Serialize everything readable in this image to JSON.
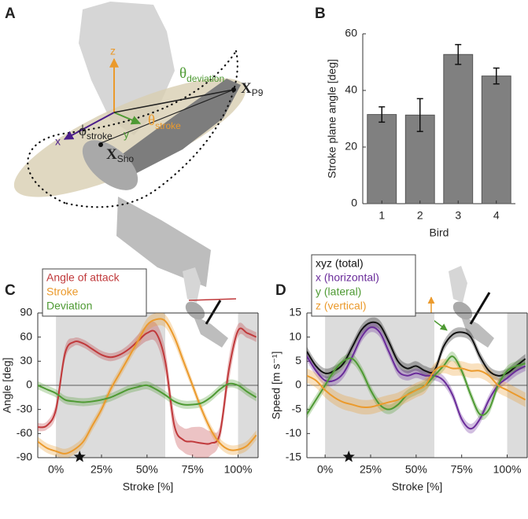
{
  "panel_a": {
    "label": "A",
    "z": "z",
    "x": "x",
    "y": "y",
    "theta_deviation": {
      "symbol": "θ",
      "subscript": "deviation"
    },
    "theta_stroke": {
      "symbol": "θ",
      "subscript": "stroke"
    },
    "phi_stroke": {
      "symbol": "ϕ",
      "subscript": "stroke"
    },
    "x_p9": {
      "symbol": "X",
      "subscript": "P9"
    },
    "x_sho": {
      "symbol": "X",
      "subscript": "Sho"
    }
  },
  "chart_data": [
    {
      "type": "bar",
      "panel": "B",
      "ylabel": "Stroke plane angle [deg]",
      "xlabel": "Bird",
      "categories": [
        "1",
        "2",
        "3",
        "4"
      ],
      "values": [
        31.5,
        31.3,
        52.7,
        45.1
      ],
      "errors": [
        2.7,
        5.8,
        3.5,
        2.8
      ],
      "color": "#808080",
      "ylim": [
        0,
        60
      ],
      "yticks": [
        0,
        20,
        40,
        60
      ],
      "box": false
    },
    {
      "type": "line",
      "panel": "C",
      "ylabel": "Angle [deg]",
      "xlabel": "Stroke [%]",
      "x": [
        -10,
        -5,
        0,
        5,
        10,
        15,
        20,
        25,
        30,
        35,
        40,
        45,
        50,
        55,
        60,
        65,
        70,
        75,
        80,
        85,
        90,
        95,
        100,
        105,
        110
      ],
      "series": [
        {
          "name": "Angle of attack",
          "color": "#c0393b",
          "values": [
            -52,
            -50,
            -30,
            40,
            54,
            52,
            45,
            38,
            35,
            38,
            45,
            55,
            65,
            65,
            30,
            -50,
            -68,
            -70,
            -72,
            -72,
            -60,
            20,
            68,
            65,
            60
          ],
          "spread": [
            5,
            5,
            8,
            8,
            5,
            5,
            5,
            5,
            5,
            5,
            6,
            8,
            10,
            12,
            15,
            15,
            15,
            18,
            20,
            15,
            10,
            15,
            8,
            6,
            6
          ]
        },
        {
          "name": "Stroke",
          "color": "#eb9a2c",
          "values": [
            -70,
            -78,
            -82,
            -85,
            -80,
            -70,
            -50,
            -30,
            -5,
            15,
            35,
            55,
            75,
            82,
            80,
            60,
            30,
            0,
            -30,
            -55,
            -72,
            -80,
            -80,
            -75,
            -62
          ],
          "spread": [
            6,
            6,
            6,
            6,
            6,
            6,
            6,
            6,
            6,
            6,
            6,
            7,
            8,
            8,
            8,
            8,
            7,
            6,
            6,
            6,
            6,
            6,
            6,
            6,
            6
          ]
        },
        {
          "name": "Deviation",
          "color": "#4e9a33",
          "values": [
            0,
            -5,
            -10,
            -18,
            -20,
            -21,
            -20,
            -18,
            -15,
            -10,
            -5,
            -2,
            0,
            -5,
            -12,
            -20,
            -24,
            -24,
            -22,
            -15,
            -5,
            2,
            0,
            -8,
            -15
          ],
          "spread": [
            5,
            5,
            5,
            5,
            5,
            5,
            5,
            5,
            5,
            5,
            5,
            5,
            5,
            5,
            5,
            5,
            5,
            5,
            5,
            5,
            5,
            5,
            5,
            5,
            5
          ]
        }
      ],
      "xlim": [
        -10,
        111
      ],
      "ylim": [
        -90,
        90
      ],
      "yticks": [
        -90,
        -60,
        -30,
        0,
        30,
        60,
        90
      ],
      "xticks": [
        {
          "value": 0,
          "label": "0%"
        },
        {
          "value": 25,
          "label": "25%"
        },
        {
          "value": 50,
          "label": "50%"
        },
        {
          "value": 75,
          "label": "75%"
        },
        {
          "value": 100,
          "label": "100%"
        }
      ],
      "shaded": [
        [
          0,
          60
        ],
        [
          100,
          111
        ]
      ],
      "marker_x": 13,
      "legend": "upper left",
      "zero_line": true,
      "box": true
    },
    {
      "type": "line",
      "panel": "D",
      "ylabel": "Speed [m s⁻¹]",
      "xlabel": "Stroke [%]",
      "x": [
        -10,
        -5,
        0,
        5,
        10,
        15,
        20,
        25,
        30,
        35,
        40,
        45,
        50,
        55,
        60,
        65,
        70,
        75,
        80,
        85,
        90,
        95,
        100,
        105,
        110
      ],
      "series": [
        {
          "name": "xyz (total)",
          "color": "#111111",
          "values": [
            7,
            4,
            2.5,
            3,
            4.5,
            8,
            11.5,
            13,
            12.5,
            9,
            5,
            3.5,
            4,
            3,
            3,
            8,
            10.5,
            11,
            10,
            6,
            3,
            2,
            2.5,
            4,
            5.5
          ],
          "spread": [
            1,
            1,
            1,
            1,
            1,
            1,
            1,
            1,
            1,
            1,
            1,
            1,
            1,
            1,
            1,
            1,
            1,
            1,
            1,
            1,
            1,
            1,
            1,
            1,
            1
          ]
        },
        {
          "name": "x (horizontal)",
          "color": "#6a2c9a",
          "values": [
            6,
            3,
            1,
            1,
            2.5,
            6,
            10,
            12,
            11,
            7,
            3,
            2,
            2.5,
            2,
            2,
            1,
            -2,
            -7,
            -9,
            -7,
            -3,
            0,
            1.5,
            3,
            4
          ],
          "spread": [
            1,
            1,
            1,
            1,
            1,
            1,
            1,
            1,
            1,
            1,
            1,
            1,
            1,
            1,
            1,
            1,
            1,
            1,
            1,
            1,
            1,
            1,
            1,
            1,
            1
          ]
        },
        {
          "name": "y (lateral)",
          "color": "#4e9a33",
          "values": [
            -6,
            -3,
            0,
            3,
            5,
            5.5,
            3,
            -1,
            -4,
            -5,
            -4,
            -2,
            -1,
            0,
            2,
            4,
            6,
            3,
            -2,
            -6,
            -5,
            0,
            3,
            4,
            4.5
          ],
          "spread": [
            1,
            1,
            1,
            1,
            1,
            1,
            1,
            1,
            1,
            1,
            1,
            1,
            1,
            1,
            1,
            1,
            1,
            1,
            1,
            1,
            1,
            1,
            1,
            1,
            1
          ]
        },
        {
          "name": "z (vertical)",
          "color": "#eb9a2c",
          "values": [
            2,
            1,
            -1,
            -2.5,
            -3.5,
            -4,
            -4.5,
            -4.5,
            -4,
            -3.5,
            -3,
            -2,
            -1,
            0,
            3,
            4,
            3.5,
            3.5,
            3,
            3,
            2,
            0,
            -1,
            -2,
            -3
          ],
          "spread": [
            1.5,
            1.5,
            1.5,
            1.5,
            1.5,
            1.5,
            1.5,
            1.5,
            1.5,
            1.5,
            1.5,
            1.5,
            1.5,
            1.5,
            1.5,
            1.5,
            1.5,
            1.5,
            1.5,
            1.5,
            1.5,
            1.5,
            1.5,
            1.5,
            1.5
          ]
        }
      ],
      "xlim": [
        -10,
        111
      ],
      "ylim": [
        -15,
        15
      ],
      "yticks": [
        -15,
        -10,
        -5,
        0,
        5,
        10,
        15
      ],
      "xticks": [
        {
          "value": 0,
          "label": "0%"
        },
        {
          "value": 25,
          "label": "25%"
        },
        {
          "value": 50,
          "label": "50%"
        },
        {
          "value": 75,
          "label": "75%"
        },
        {
          "value": 100,
          "label": "100%"
        }
      ],
      "shaded": [
        [
          0,
          60
        ],
        [
          100,
          111
        ]
      ],
      "marker_x": 13,
      "legend": "upper left",
      "zero_line": true,
      "box": true
    }
  ]
}
